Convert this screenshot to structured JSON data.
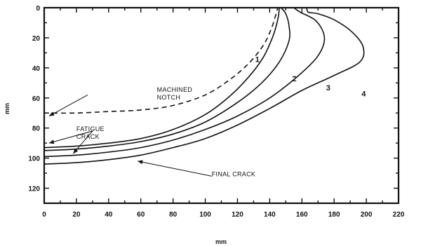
{
  "chart_data": {
    "type": "line",
    "title": "",
    "xlabel": "mm",
    "ylabel": "mm",
    "xlim": [
      0,
      220
    ],
    "ylim": [
      130,
      0
    ],
    "x_ticks": [
      0,
      20,
      40,
      60,
      80,
      100,
      120,
      140,
      160,
      180,
      200,
      220
    ],
    "y_ticks": [
      0,
      20,
      40,
      60,
      80,
      100,
      120
    ],
    "grid": false,
    "series": [
      {
        "name": "",
        "style": "dashed",
        "points": [
          [
            0,
            70
          ],
          [
            20,
            70
          ],
          [
            40,
            69
          ],
          [
            60,
            68
          ],
          [
            80,
            65
          ],
          [
            100,
            58
          ],
          [
            115,
            48
          ],
          [
            127,
            37
          ],
          [
            136,
            25
          ],
          [
            141,
            14
          ],
          [
            144,
            4
          ],
          [
            145,
            0
          ]
        ]
      },
      {
        "name": "1",
        "style": "solid",
        "points": [
          [
            0,
            93
          ],
          [
            20,
            92
          ],
          [
            40,
            90
          ],
          [
            60,
            87
          ],
          [
            80,
            81
          ],
          [
            100,
            71
          ],
          [
            115,
            59
          ],
          [
            127,
            46
          ],
          [
            136,
            33
          ],
          [
            142,
            19
          ],
          [
            145,
            8
          ],
          [
            146,
            0
          ]
        ]
      },
      {
        "name": "2",
        "style": "solid",
        "points": [
          [
            0,
            95
          ],
          [
            20,
            94
          ],
          [
            40,
            92
          ],
          [
            60,
            89
          ],
          [
            80,
            84
          ],
          [
            100,
            76
          ],
          [
            120,
            63
          ],
          [
            135,
            50
          ],
          [
            146,
            36
          ],
          [
            152,
            22
          ],
          [
            152,
            12
          ],
          [
            150,
            4
          ],
          [
            147,
            0
          ]
        ]
      },
      {
        "name": "3",
        "style": "solid",
        "points": [
          [
            0,
            99
          ],
          [
            20,
            98
          ],
          [
            40,
            96
          ],
          [
            60,
            93
          ],
          [
            80,
            88
          ],
          [
            100,
            81
          ],
          [
            120,
            72
          ],
          [
            140,
            60
          ],
          [
            158,
            45
          ],
          [
            170,
            32
          ],
          [
            174,
            20
          ],
          [
            169,
            9
          ],
          [
            159,
            3
          ],
          [
            155,
            0
          ]
        ]
      },
      {
        "name": "4",
        "style": "solid",
        "points": [
          [
            0,
            104
          ],
          [
            20,
            103
          ],
          [
            40,
            101
          ],
          [
            60,
            98
          ],
          [
            80,
            93
          ],
          [
            100,
            87
          ],
          [
            120,
            78
          ],
          [
            140,
            67
          ],
          [
            160,
            55
          ],
          [
            180,
            45
          ],
          [
            196,
            36
          ],
          [
            198,
            26
          ],
          [
            191,
            16
          ],
          [
            180,
            8
          ],
          [
            170,
            4
          ],
          [
            164,
            3
          ],
          [
            163,
            0
          ]
        ]
      }
    ],
    "curve_labels": [
      {
        "text": "1",
        "x": 131,
        "y": 36
      },
      {
        "text": "2",
        "x": 154,
        "y": 49
      },
      {
        "text": "3",
        "x": 175,
        "y": 55
      },
      {
        "text": "4",
        "x": 197,
        "y": 59
      }
    ],
    "annotations": [
      {
        "lines": [
          "MACHINED",
          "NOTCH"
        ],
        "x": 70,
        "y": 56,
        "arrow_to": [
          3,
          72
        ],
        "arrow_from": [
          27,
          58
        ]
      },
      {
        "lines": [
          "FATIGUE",
          "CRACK"
        ],
        "x": 20,
        "y": 82,
        "arrow_to_list": [
          [
            3,
            90
          ],
          [
            18,
            97
          ]
        ],
        "arrow_from": [
          30,
          82
        ]
      },
      {
        "lines": [
          "FINAL CRACK"
        ],
        "x": 104,
        "y": 112,
        "arrow_to": [
          58,
          102
        ],
        "arrow_from": [
          104,
          112
        ]
      }
    ]
  }
}
